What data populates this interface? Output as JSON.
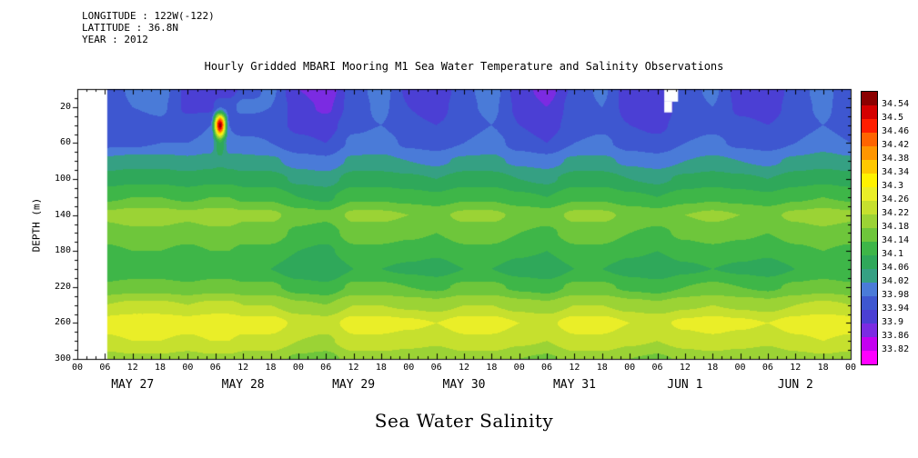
{
  "header": {
    "lines": [
      "LONGITUDE : 122W(-122)",
      "LATITUDE : 36.8N",
      "YEAR : 2012"
    ]
  },
  "title": "Hourly Gridded MBARI Mooring M1 Sea Water Temperature and Salinity Observations",
  "footer_label": "Sea Water Salinity",
  "y_axis": {
    "label": "DEPTH (m)",
    "tick_values": [
      20,
      60,
      100,
      140,
      180,
      220,
      260,
      300
    ],
    "minor_step": 10
  },
  "x_axis": {
    "tick_hours": [
      0,
      6,
      12,
      18,
      24,
      30,
      36,
      42,
      48,
      54,
      60,
      66,
      72,
      78,
      84,
      90,
      96,
      102,
      108,
      114,
      120,
      126,
      132,
      138,
      144,
      150,
      156,
      162,
      168
    ],
    "tick_labels": [
      "00",
      "06",
      "12",
      "18",
      "00",
      "06",
      "12",
      "18",
      "00",
      "06",
      "12",
      "18",
      "00",
      "06",
      "12",
      "18",
      "00",
      "06",
      "12",
      "18",
      "00",
      "06",
      "12",
      "18",
      "00",
      "06",
      "12",
      "18",
      "00"
    ],
    "minor_step": 2,
    "day_labels": [
      {
        "label": "MAY 27",
        "hour": 12
      },
      {
        "label": "MAY 28",
        "hour": 36
      },
      {
        "label": "MAY 29",
        "hour": 60
      },
      {
        "label": "MAY 30",
        "hour": 84
      },
      {
        "label": "MAY 31",
        "hour": 108
      },
      {
        "label": "JUN 1",
        "hour": 132
      },
      {
        "label": "JUN 2",
        "hour": 156
      }
    ]
  },
  "chart_data": {
    "type": "heatmap",
    "title": "Hourly Gridded MBARI Mooring M1 Sea Water Temperature and Salinity Observations",
    "variable": "Sea Water Salinity",
    "ylabel": "DEPTH (m)",
    "x_range_hours": [
      0,
      168
    ],
    "y_range_m": [
      0,
      300
    ],
    "x_start_label": "MAY 27 00",
    "x_end_label": "JUN 3 00",
    "hours": [
      0,
      6,
      12,
      18,
      24,
      29,
      31,
      33,
      36,
      42,
      48,
      54,
      60,
      66,
      72,
      78,
      84,
      90,
      96,
      102,
      108,
      114,
      120,
      126,
      132,
      138,
      144,
      150,
      156,
      162,
      168
    ],
    "depths": [
      0,
      20,
      40,
      60,
      80,
      100,
      120,
      140,
      160,
      180,
      200,
      220,
      240,
      260,
      280,
      300
    ],
    "values": [
      [
        null,
        33.94,
        33.99,
        34.0,
        33.93,
        33.9,
        33.9,
        33.92,
        33.95,
        33.99,
        33.9,
        33.87,
        33.96,
        34.0,
        33.93,
        33.9,
        33.97,
        34.0,
        33.92,
        33.88,
        33.95,
        33.99,
        33.91,
        33.9,
        33.96,
        33.99,
        33.92,
        33.9,
        33.96,
        34.0,
        33.94
      ],
      [
        null,
        33.94,
        33.98,
        33.99,
        33.93,
        33.93,
        33.98,
        33.96,
        34.0,
        33.98,
        33.92,
        33.89,
        33.96,
        33.99,
        33.94,
        33.92,
        33.97,
        33.99,
        33.93,
        33.9,
        33.96,
        33.98,
        33.92,
        33.91,
        33.96,
        33.98,
        33.93,
        33.92,
        33.96,
        33.99,
        33.95
      ],
      [
        null,
        33.95,
        33.96,
        33.97,
        33.96,
        33.98,
        34.56,
        33.98,
        33.94,
        33.96,
        33.93,
        33.92,
        33.97,
        33.98,
        33.95,
        33.94,
        33.96,
        33.98,
        33.94,
        33.92,
        33.96,
        33.97,
        33.94,
        33.93,
        33.96,
        33.97,
        33.95,
        33.94,
        33.96,
        33.98,
        33.96
      ],
      [
        null,
        33.97,
        33.97,
        33.98,
        33.98,
        33.99,
        34.1,
        33.99,
        34.0,
        33.98,
        33.95,
        33.94,
        33.99,
        34.0,
        33.97,
        33.96,
        33.98,
        34.0,
        33.96,
        33.94,
        33.98,
        33.99,
        33.96,
        33.95,
        33.98,
        33.99,
        33.97,
        33.96,
        33.98,
        34.0,
        33.98
      ],
      [
        null,
        34.03,
        34.04,
        34.04,
        34.03,
        34.04,
        34.05,
        34.04,
        34.03,
        34.03,
        34.0,
        33.99,
        34.03,
        34.03,
        34.02,
        34.01,
        34.03,
        34.03,
        34.01,
        34.0,
        34.03,
        34.03,
        34.01,
        34.0,
        34.02,
        34.03,
        34.02,
        34.01,
        34.03,
        34.04,
        34.03
      ],
      [
        null,
        34.08,
        34.09,
        34.09,
        34.08,
        34.09,
        34.09,
        34.09,
        34.08,
        34.08,
        34.05,
        34.04,
        34.08,
        34.08,
        34.07,
        34.06,
        34.08,
        34.08,
        34.06,
        34.05,
        34.08,
        34.08,
        34.06,
        34.05,
        34.07,
        34.08,
        34.07,
        34.06,
        34.08,
        34.09,
        34.08
      ],
      [
        null,
        34.13,
        34.14,
        34.14,
        34.13,
        34.14,
        34.14,
        34.14,
        34.13,
        34.13,
        34.1,
        34.09,
        34.13,
        34.13,
        34.12,
        34.11,
        34.13,
        34.13,
        34.11,
        34.1,
        34.13,
        34.13,
        34.11,
        34.1,
        34.12,
        34.13,
        34.12,
        34.11,
        34.13,
        34.14,
        34.13
      ],
      [
        null,
        34.19,
        34.2,
        34.2,
        34.19,
        34.2,
        34.2,
        34.2,
        34.19,
        34.19,
        34.16,
        34.15,
        34.19,
        34.19,
        34.18,
        34.17,
        34.19,
        34.19,
        34.17,
        34.16,
        34.19,
        34.19,
        34.17,
        34.16,
        34.18,
        34.19,
        34.18,
        34.17,
        34.19,
        34.2,
        34.19
      ],
      [
        null,
        34.16,
        34.17,
        34.17,
        34.16,
        34.17,
        34.17,
        34.17,
        34.16,
        34.16,
        34.13,
        34.12,
        34.16,
        34.16,
        34.15,
        34.14,
        34.16,
        34.16,
        34.14,
        34.13,
        34.16,
        34.16,
        34.14,
        34.13,
        34.15,
        34.16,
        34.15,
        34.14,
        34.16,
        34.17,
        34.16
      ],
      [
        null,
        34.13,
        34.14,
        34.14,
        34.13,
        34.14,
        34.14,
        34.14,
        34.13,
        34.13,
        34.1,
        34.09,
        34.13,
        34.13,
        34.12,
        34.11,
        34.13,
        34.13,
        34.11,
        34.1,
        34.13,
        34.13,
        34.11,
        34.1,
        34.12,
        34.13,
        34.12,
        34.11,
        34.13,
        34.14,
        34.13
      ],
      [
        null,
        34.1,
        34.11,
        34.11,
        34.1,
        34.11,
        34.11,
        34.11,
        34.1,
        34.1,
        34.07,
        34.06,
        34.1,
        34.1,
        34.09,
        34.08,
        34.1,
        34.1,
        34.08,
        34.07,
        34.1,
        34.1,
        34.08,
        34.07,
        34.09,
        34.1,
        34.09,
        34.08,
        34.1,
        34.11,
        34.1
      ],
      [
        null,
        34.15,
        34.16,
        34.16,
        34.15,
        34.16,
        34.16,
        34.16,
        34.15,
        34.15,
        34.12,
        34.11,
        34.15,
        34.15,
        34.14,
        34.13,
        34.15,
        34.15,
        34.13,
        34.12,
        34.15,
        34.15,
        34.13,
        34.12,
        34.14,
        34.15,
        34.14,
        34.13,
        34.15,
        34.16,
        34.15
      ],
      [
        null,
        34.22,
        34.23,
        34.23,
        34.22,
        34.23,
        34.23,
        34.23,
        34.22,
        34.22,
        34.19,
        34.18,
        34.22,
        34.22,
        34.21,
        34.2,
        34.22,
        34.22,
        34.2,
        34.19,
        34.22,
        34.22,
        34.2,
        34.19,
        34.21,
        34.22,
        34.21,
        34.2,
        34.22,
        34.23,
        34.22
      ],
      [
        null,
        34.28,
        34.29,
        34.29,
        34.28,
        34.29,
        34.29,
        34.29,
        34.28,
        34.28,
        34.25,
        34.24,
        34.28,
        34.28,
        34.27,
        34.26,
        34.28,
        34.28,
        34.26,
        34.25,
        34.28,
        34.28,
        34.26,
        34.25,
        34.27,
        34.28,
        34.27,
        34.26,
        34.28,
        34.29,
        34.28
      ],
      [
        null,
        34.25,
        34.26,
        34.26,
        34.25,
        34.26,
        34.26,
        34.26,
        34.25,
        34.25,
        34.22,
        34.21,
        34.25,
        34.25,
        34.24,
        34.23,
        34.25,
        34.25,
        34.23,
        34.22,
        34.25,
        34.25,
        34.23,
        34.22,
        34.24,
        34.25,
        34.24,
        34.23,
        34.25,
        34.26,
        34.25
      ],
      [
        null,
        34.2,
        34.21,
        34.21,
        34.2,
        34.21,
        34.21,
        34.21,
        34.2,
        34.2,
        34.17,
        34.16,
        34.2,
        34.2,
        34.19,
        34.18,
        34.2,
        34.2,
        34.18,
        34.17,
        34.2,
        34.2,
        34.18,
        34.17,
        34.19,
        34.2,
        34.19,
        34.18,
        34.2,
        34.21,
        34.2
      ]
    ],
    "levels": [
      33.82,
      33.86,
      33.9,
      33.94,
      33.98,
      34.02,
      34.06,
      34.1,
      34.14,
      34.18,
      34.22,
      34.26,
      34.3,
      34.34,
      34.38,
      34.42,
      34.46,
      34.5,
      34.54
    ],
    "palette_bottom_to_top": [
      "#ff00ff",
      "#c400f0",
      "#7b2be2",
      "#4b3fd4",
      "#3e57d0",
      "#4a7bd8",
      "#35a083",
      "#2fa85a",
      "#3eb648",
      "#6ec63b",
      "#9bd335",
      "#c6e02e",
      "#eaee28",
      "#fff200",
      "#ffc800",
      "#ff9600",
      "#ff6400",
      "#ff1e00",
      "#d40000",
      "#8b0000"
    ],
    "colorbar_labels": [
      "34.54",
      "34.5",
      "34.46",
      "34.42",
      "34.38",
      "34.34",
      "34.3",
      "34.26",
      "34.22",
      "34.18",
      "34.14",
      "34.1",
      "34.06",
      "34.02",
      "33.98",
      "33.94",
      "33.9",
      "33.86",
      "33.82"
    ],
    "missing_regions": [
      {
        "t0": 0,
        "t1": 6.5,
        "d0": 0,
        "d1": 300
      },
      {
        "t0": 127.5,
        "t1": 130.5,
        "d0": 0,
        "d1": 14
      },
      {
        "t0": 127.5,
        "t1": 129.2,
        "d0": 14,
        "d1": 26
      }
    ],
    "legend_position": "right",
    "grid": false
  }
}
